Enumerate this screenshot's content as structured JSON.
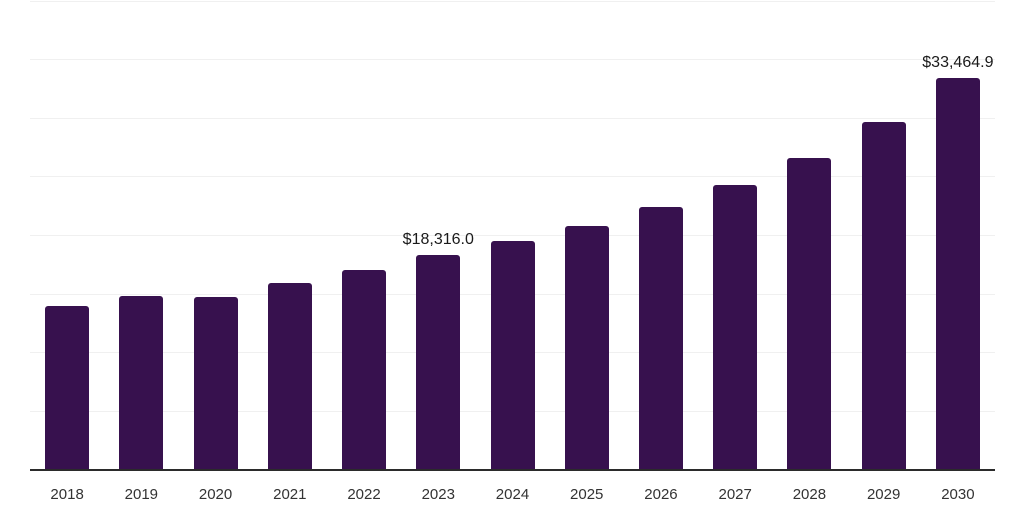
{
  "chart_data": {
    "type": "bar",
    "title": "",
    "xlabel": "",
    "ylabel": "",
    "categories": [
      "2018",
      "2019",
      "2020",
      "2021",
      "2022",
      "2023",
      "2024",
      "2025",
      "2026",
      "2027",
      "2028",
      "2029",
      "2030"
    ],
    "values": [
      13950,
      14800,
      14750,
      15950,
      17100,
      18316.0,
      19500,
      20800,
      22400,
      24350,
      26650,
      29650,
      33464.9
    ],
    "ylim": [
      0,
      40000
    ],
    "gridline_step": 5000,
    "grid": "on",
    "legend": "none",
    "data_labels": [
      {
        "category": "2023",
        "text": "$18,316.0"
      },
      {
        "category": "2030",
        "text": "$33,464.9"
      }
    ],
    "colors": {
      "bar": "#37114e",
      "axis_line": "#2b2b2b",
      "gridline": "#f0f0f0",
      "tick_text": "#333333",
      "data_label_text": "#1a1a1a",
      "background": "#ffffff"
    }
  }
}
